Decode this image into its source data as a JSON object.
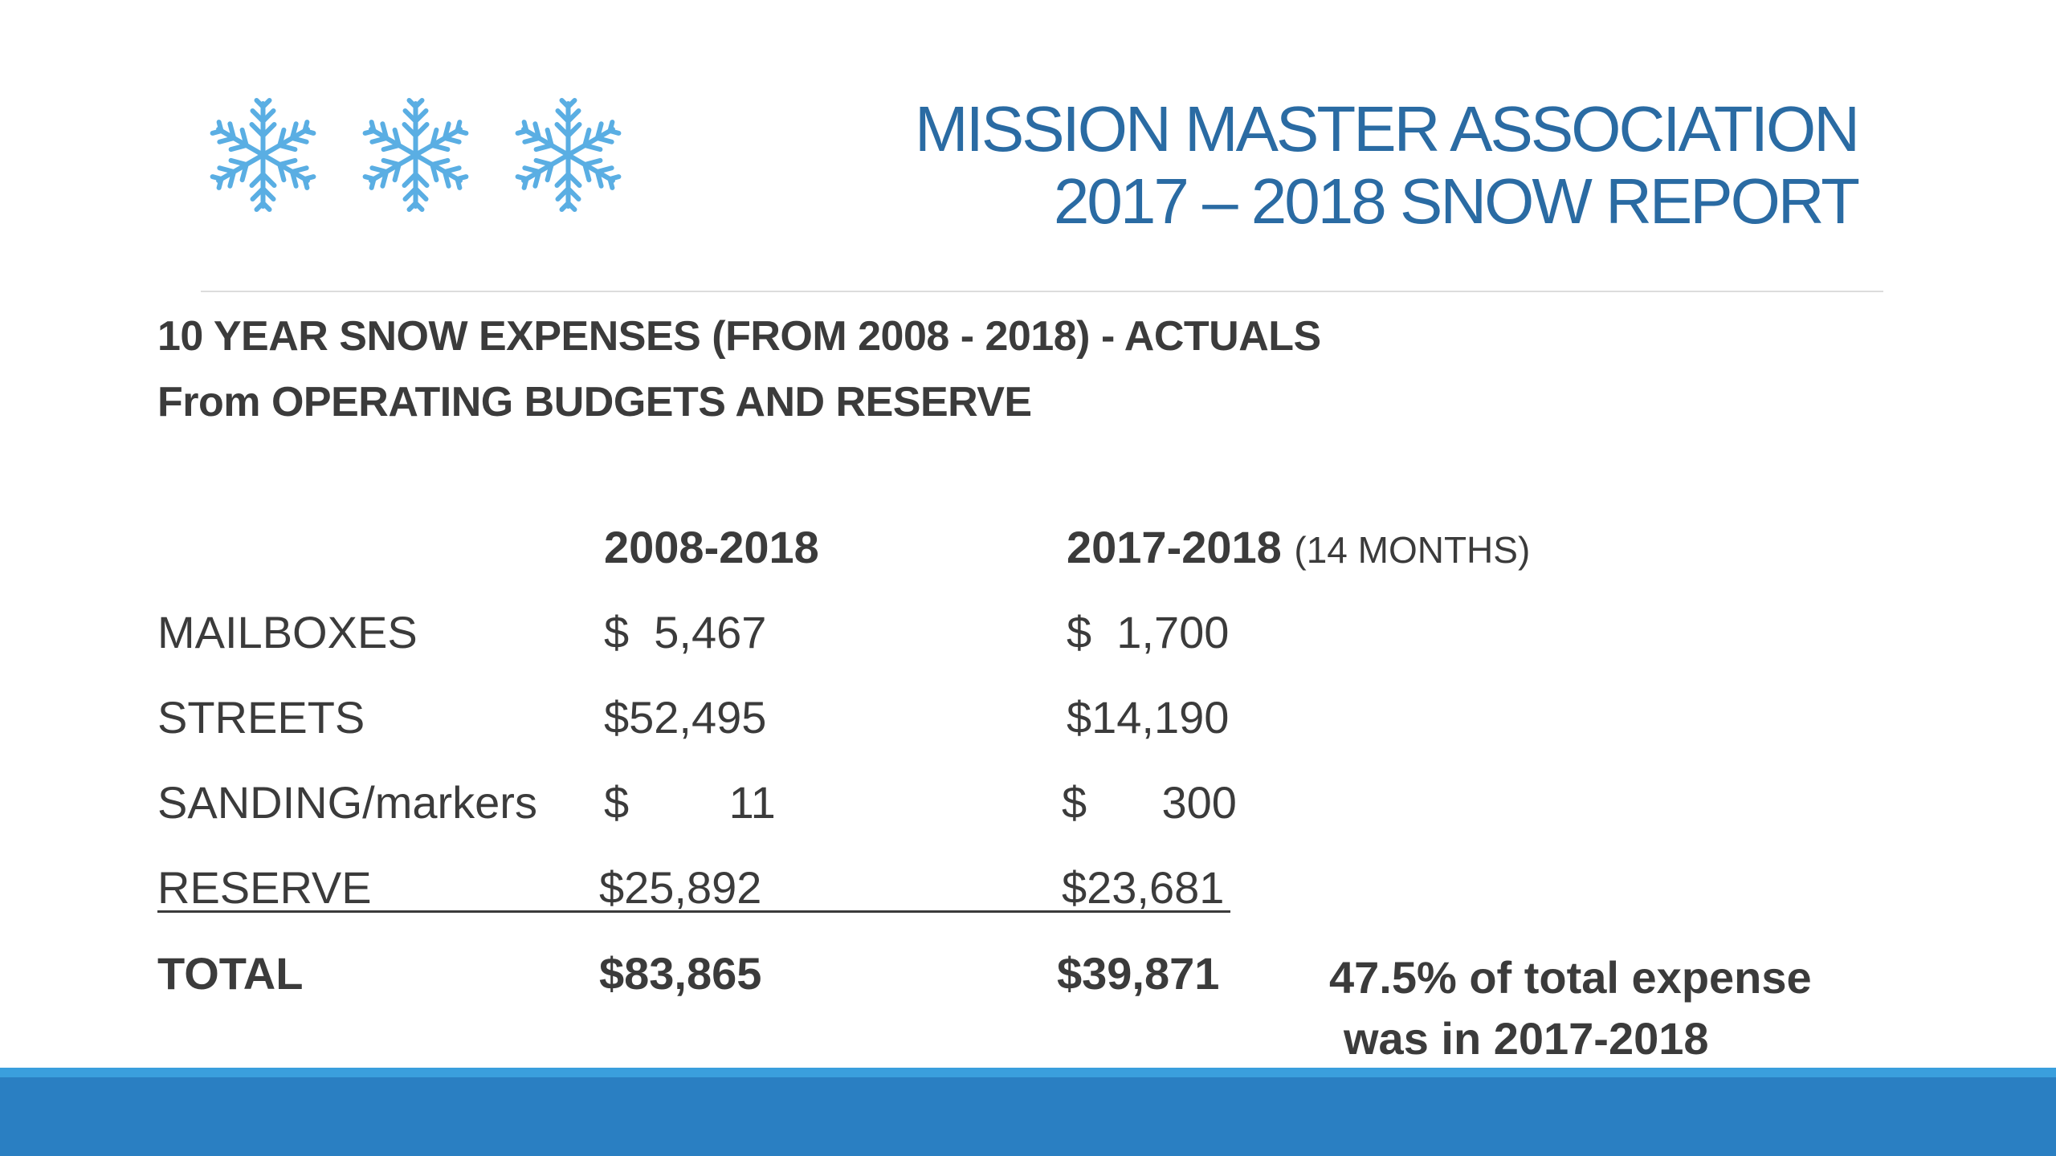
{
  "header": {
    "title_line1": "MISSION MASTER ASSOCIATION",
    "title_line2": "2017 – 2018 SNOW REPORT",
    "icons": [
      "snowflake-icon",
      "snowflake-icon",
      "snowflake-icon"
    ],
    "icon_color": "#5aaee3"
  },
  "subtitle": {
    "line1": "10 YEAR SNOW EXPENSES (FROM 2008 - 2018) - ACTUALS",
    "line2": "From OPERATING BUDGETS AND RESERVE"
  },
  "table": {
    "col1_header": "2008-2018",
    "col2_header": "2017-2018",
    "col2_note": "(14 MONTHS)",
    "rows": [
      {
        "label": "MAILBOXES",
        "v1": "$  5,467",
        "v2": "$  1,700"
      },
      {
        "label": "STREETS",
        "v1": "$52,495",
        "v2": "$14,190"
      },
      {
        "label": "SANDING/markers",
        "v1": "$        11",
        "v2": "$      300"
      },
      {
        "label": "RESERVE",
        "v1": "$25,892",
        "v2": "$23,681"
      }
    ],
    "total": {
      "label": "TOTAL",
      "v1": "$83,865",
      "v2": "$39,871"
    }
  },
  "note": {
    "line1": "47.5% of total expense",
    "line2": "was in 2017-2018"
  },
  "colors": {
    "title": "#2a6ba3",
    "text": "#3b3b3b",
    "footer_band": "#2a7fc2",
    "footer_accent": "#3a9fdd"
  }
}
